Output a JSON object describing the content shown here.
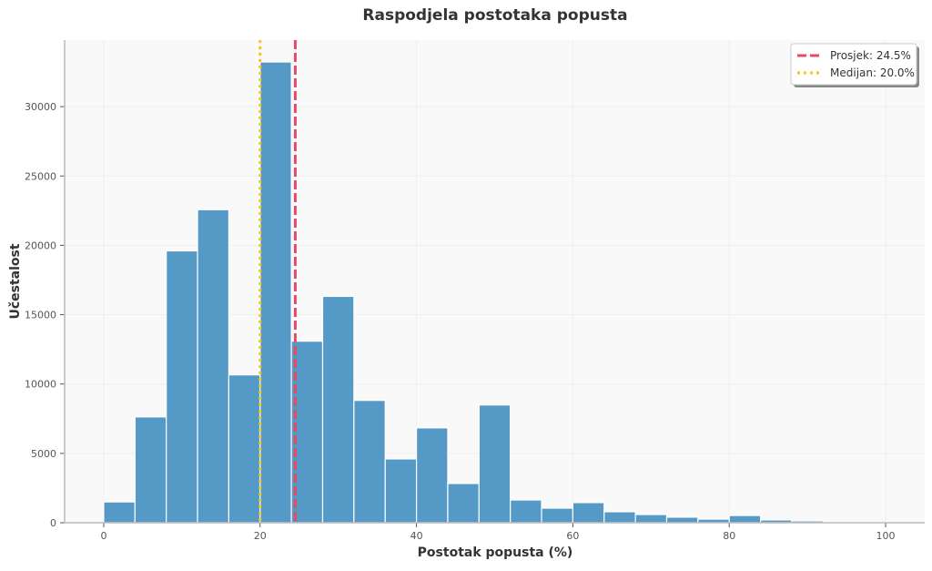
{
  "chart_data": {
    "type": "bar",
    "title": "Raspodjela postotaka popusta",
    "xlabel": "Postotak popusta (%)",
    "ylabel": "Učestalost",
    "xlim": [
      -5,
      105
    ],
    "ylim": [
      0,
      34800
    ],
    "xticks": [
      0,
      20,
      40,
      60,
      80,
      100
    ],
    "yticks": [
      0,
      5000,
      10000,
      15000,
      20000,
      25000,
      30000
    ],
    "grid": true,
    "legend_position": "top-right",
    "bin_edges": [
      0,
      4,
      8,
      12,
      16,
      20,
      24,
      28,
      32,
      36,
      40,
      44,
      48,
      52,
      56,
      60,
      64,
      68,
      72,
      76,
      80,
      84,
      88,
      92,
      96,
      100
    ],
    "values": [
      1500,
      7630,
      19600,
      22570,
      10660,
      33220,
      13090,
      16320,
      8820,
      4600,
      6840,
      2830,
      8490,
      1640,
      1050,
      1450,
      790,
      590,
      400,
      260,
      520,
      200,
      130,
      40,
      10
    ],
    "bar_color": "#5599c7",
    "lines": [
      {
        "label": "Prosjek: 24.5%",
        "x": 24.5,
        "color": "#e84a5f",
        "style": "dashed"
      },
      {
        "label": "Medijan: 20.0%",
        "x": 20.0,
        "color": "#f5c518",
        "style": "dotted"
      }
    ]
  }
}
